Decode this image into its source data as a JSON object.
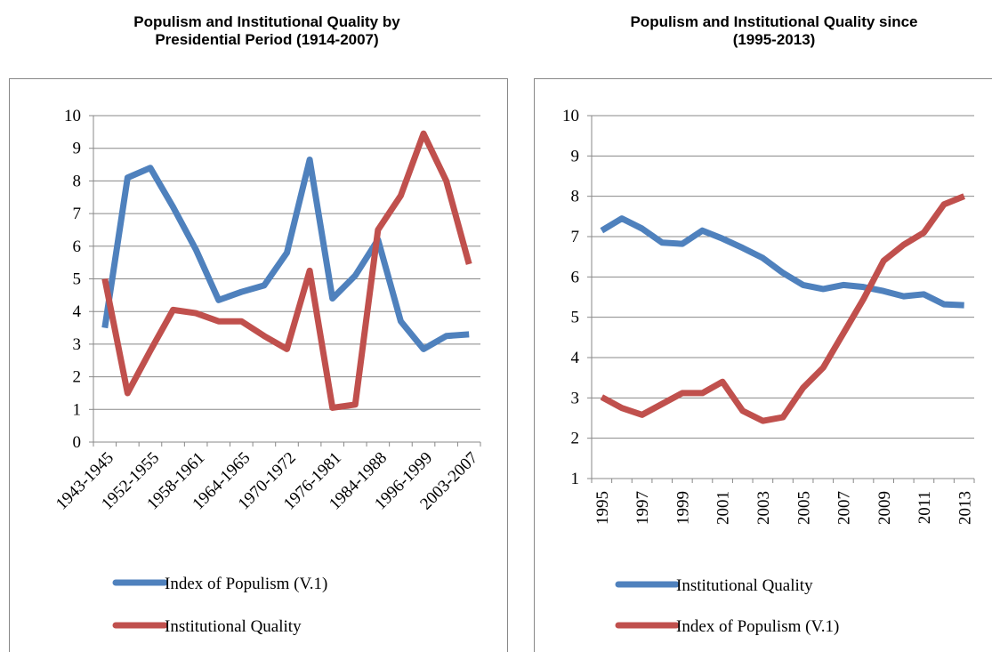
{
  "chart_data": [
    {
      "type": "line",
      "title": "Populism and Institutional Quality by Presidential Period (1914-2007)",
      "categories": [
        "1943-1945",
        null,
        "1952-1955",
        null,
        "1958-1961",
        null,
        "1964-1965",
        null,
        "1970-1972",
        null,
        "1976-1981",
        null,
        "1984-1988",
        null,
        "1996-1999",
        null,
        "2003-2007"
      ],
      "series": [
        {
          "name": "Index of Populism (V.1)",
          "color": "#4f81bd",
          "values": [
            3.5,
            8.1,
            8.4,
            7.2,
            5.9,
            4.35,
            4.6,
            4.8,
            5.8,
            8.65,
            4.4,
            5.1,
            6.2,
            3.7,
            2.85,
            3.25,
            3.3
          ]
        },
        {
          "name": "Institutional Quality",
          "color": "#c0504d",
          "values": [
            5.0,
            1.5,
            2.8,
            4.05,
            3.95,
            3.7,
            3.7,
            3.25,
            2.85,
            5.25,
            1.05,
            1.15,
            6.5,
            7.55,
            9.45,
            8.0,
            5.45
          ]
        }
      ],
      "ylim": [
        0,
        10
      ],
      "yticks": [
        0,
        1,
        2,
        3,
        4,
        5,
        6,
        7,
        8,
        9,
        10
      ],
      "grid": true,
      "legend": "bottom"
    },
    {
      "type": "line",
      "title": "Populism and Institutional Quality since (1995-2013)",
      "categories": [
        "1995",
        null,
        "1997",
        null,
        "1999",
        null,
        "2001",
        null,
        "2003",
        null,
        "2005",
        null,
        "2007",
        null,
        "2009",
        null,
        "2011",
        null,
        "2013"
      ],
      "series": [
        {
          "name": "Institutional Quality",
          "color": "#4f81bd",
          "values": [
            7.15,
            7.45,
            7.2,
            6.85,
            6.82,
            7.15,
            6.95,
            6.72,
            6.47,
            6.1,
            5.8,
            5.7,
            5.8,
            5.75,
            5.65,
            5.52,
            5.57,
            5.32,
            5.3
          ]
        },
        {
          "name": "Index of Populism (V.1)",
          "color": "#c0504d",
          "values": [
            3.02,
            2.75,
            2.58,
            2.85,
            3.12,
            3.12,
            3.4,
            2.68,
            2.43,
            2.52,
            3.25,
            3.75,
            4.6,
            5.45,
            6.4,
            6.8,
            7.1,
            7.8,
            8.0
          ]
        }
      ],
      "ylim": [
        1,
        10
      ],
      "yticks": [
        1,
        2,
        3,
        4,
        5,
        6,
        7,
        8,
        9,
        10
      ],
      "grid": true,
      "legend": "bottom"
    }
  ]
}
